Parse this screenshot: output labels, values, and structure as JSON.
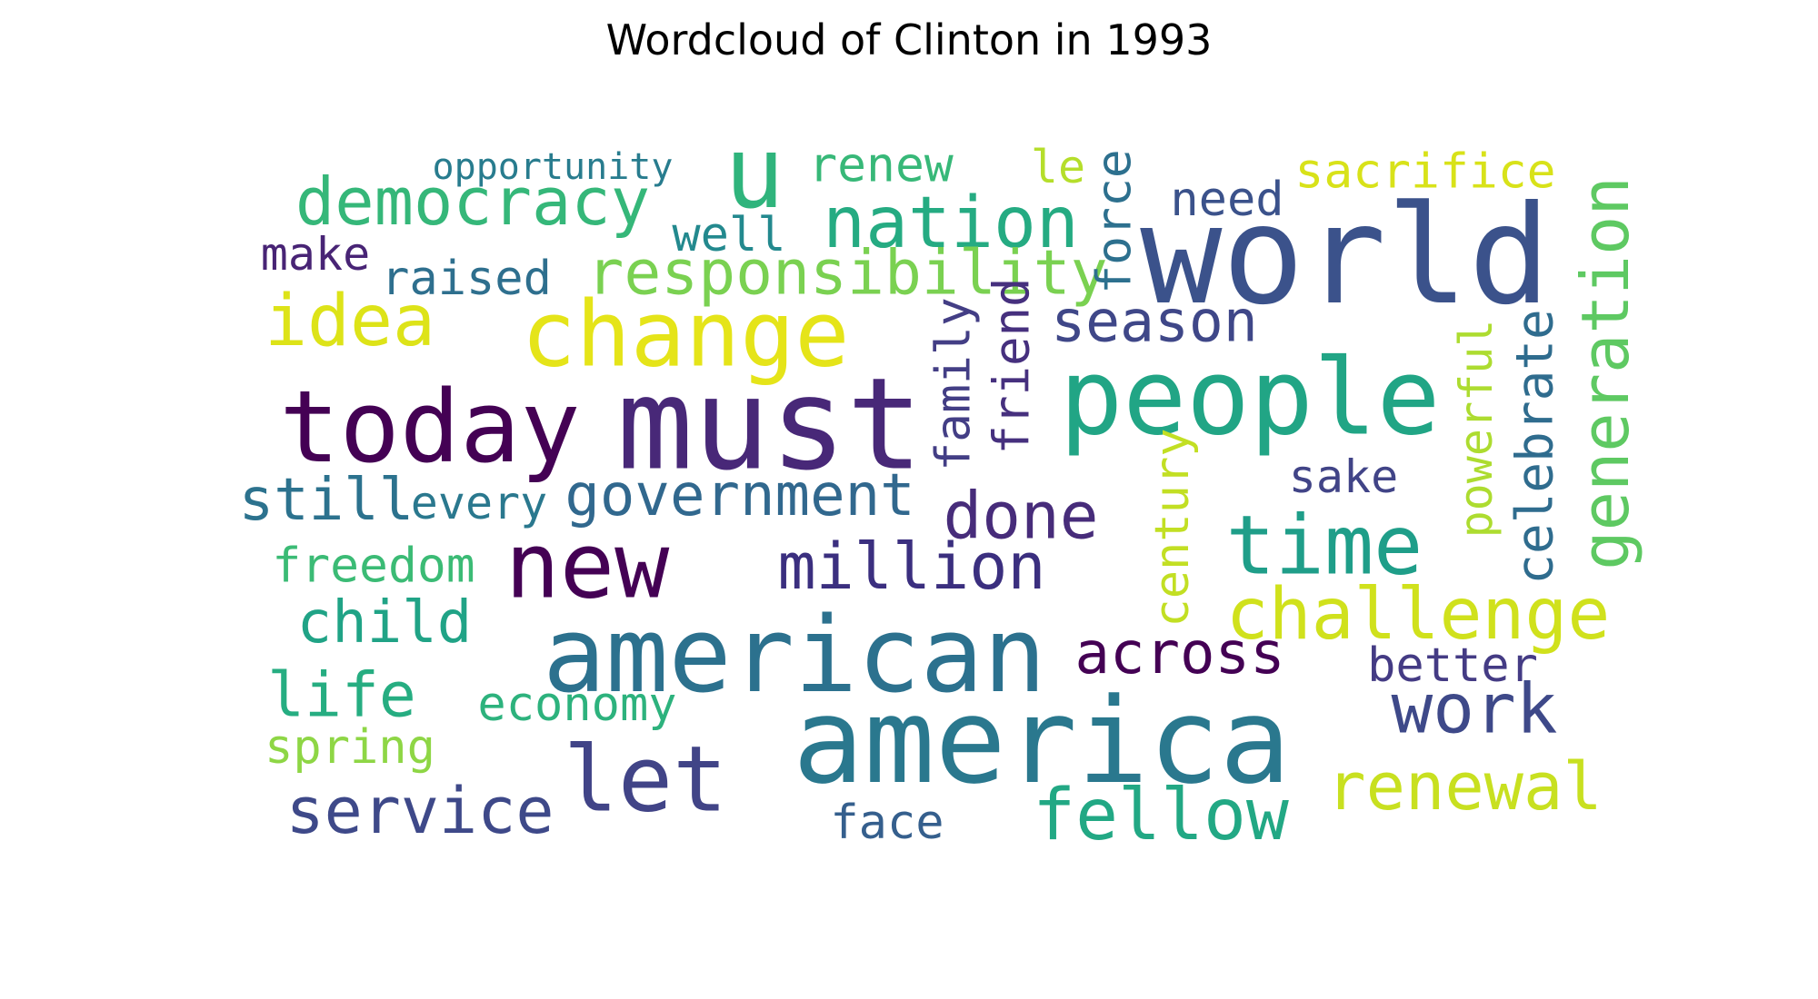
{
  "chart_data": {
    "type": "wordcloud",
    "title": "Wordcloud of Clinton in 1993",
    "words": [
      {
        "text": "world",
        "weight": 1.0,
        "color": "#3b528b",
        "rotated": false
      },
      {
        "text": "america",
        "weight": 0.96,
        "color": "#2a788e",
        "rotated": false
      },
      {
        "text": "must",
        "weight": 0.93,
        "color": "#482878",
        "rotated": false
      },
      {
        "text": "american",
        "weight": 0.86,
        "color": "#2c718e",
        "rotated": false
      },
      {
        "text": "people",
        "weight": 0.86,
        "color": "#21a585",
        "rotated": false
      },
      {
        "text": "today",
        "weight": 0.82,
        "color": "#440154",
        "rotated": false
      },
      {
        "text": "u",
        "weight": 0.72,
        "color": "#2fb47c",
        "rotated": false
      },
      {
        "text": "change",
        "weight": 0.71,
        "color": "#e5e419",
        "rotated": false
      },
      {
        "text": "new",
        "weight": 0.7,
        "color": "#440154",
        "rotated": false
      },
      {
        "text": "let",
        "weight": 0.7,
        "color": "#414487",
        "rotated": false
      },
      {
        "text": "time",
        "weight": 0.62,
        "color": "#1f9e89",
        "rotated": false
      },
      {
        "text": "challenge",
        "weight": 0.56,
        "color": "#d0e11c",
        "rotated": false
      },
      {
        "text": "fellow",
        "weight": 0.56,
        "color": "#22a884",
        "rotated": false
      },
      {
        "text": "idea",
        "weight": 0.56,
        "color": "#dde318",
        "rotated": false
      },
      {
        "text": "nation",
        "weight": 0.56,
        "color": "#25ab82",
        "rotated": false
      },
      {
        "text": "work",
        "weight": 0.54,
        "color": "#3e4989",
        "rotated": false
      },
      {
        "text": "democracy",
        "weight": 0.52,
        "color": "#35b779",
        "rotated": false
      },
      {
        "text": "renewal",
        "weight": 0.52,
        "color": "#c8e020",
        "rotated": false
      },
      {
        "text": "generation",
        "weight": 0.52,
        "color": "#5ec962",
        "rotated": true
      },
      {
        "text": "done",
        "weight": 0.51,
        "color": "#472c7a",
        "rotated": false
      },
      {
        "text": "service",
        "weight": 0.5,
        "color": "#3e4989",
        "rotated": false
      },
      {
        "text": "million",
        "weight": 0.5,
        "color": "#3b2f7f",
        "rotated": false
      },
      {
        "text": "responsibility",
        "weight": 0.49,
        "color": "#7ad151",
        "rotated": false
      },
      {
        "text": "life",
        "weight": 0.49,
        "color": "#26ad81",
        "rotated": false
      },
      {
        "text": "government",
        "weight": 0.46,
        "color": "#31688e",
        "rotated": false
      },
      {
        "text": "still",
        "weight": 0.46,
        "color": "#2c728e",
        "rotated": false
      },
      {
        "text": "across",
        "weight": 0.46,
        "color": "#440154",
        "rotated": false
      },
      {
        "text": "child",
        "weight": 0.46,
        "color": "#20a386",
        "rotated": false
      },
      {
        "text": "season",
        "weight": 0.45,
        "color": "#3f4788",
        "rotated": false
      },
      {
        "text": "celebrate",
        "weight": 0.4,
        "color": "#2f6c8e",
        "rotated": true
      },
      {
        "text": "friend",
        "weight": 0.38,
        "color": "#46307e",
        "rotated": true
      },
      {
        "text": "sacrifice",
        "weight": 0.38,
        "color": "#d8e219",
        "rotated": false
      },
      {
        "text": "renew",
        "weight": 0.38,
        "color": "#37b878",
        "rotated": false
      },
      {
        "text": "family",
        "weight": 0.38,
        "color": "#433e85",
        "rotated": true
      },
      {
        "text": "freedom",
        "weight": 0.38,
        "color": "#3bbb75",
        "rotated": false
      },
      {
        "text": "force",
        "weight": 0.38,
        "color": "#2d708e",
        "rotated": true
      },
      {
        "text": "century",
        "weight": 0.37,
        "color": "#c2df23",
        "rotated": true
      },
      {
        "text": "raised",
        "weight": 0.37,
        "color": "#2e6f8e",
        "rotated": false
      },
      {
        "text": "economy",
        "weight": 0.37,
        "color": "#2db27d",
        "rotated": false
      },
      {
        "text": "spring",
        "weight": 0.37,
        "color": "#8ed645",
        "rotated": false
      },
      {
        "text": "need",
        "weight": 0.37,
        "color": "#3b528b",
        "rotated": false
      },
      {
        "text": "better",
        "weight": 0.37,
        "color": "#443b84",
        "rotated": false
      },
      {
        "text": "face",
        "weight": 0.37,
        "color": "#355f8d",
        "rotated": false
      },
      {
        "text": "well",
        "weight": 0.37,
        "color": "#23898e",
        "rotated": false
      },
      {
        "text": "every",
        "weight": 0.36,
        "color": "#2a788e",
        "rotated": false
      },
      {
        "text": "make",
        "weight": 0.36,
        "color": "#482475",
        "rotated": false
      },
      {
        "text": "powerful",
        "weight": 0.36,
        "color": "#addc30",
        "rotated": true
      },
      {
        "text": "sake",
        "weight": 0.36,
        "color": "#414487",
        "rotated": false
      },
      {
        "text": "le",
        "weight": 0.36,
        "color": "#b5de2b",
        "rotated": false
      },
      {
        "text": "opportunity",
        "weight": 0.28,
        "color": "#287c8e",
        "rotated": false
      }
    ]
  }
}
